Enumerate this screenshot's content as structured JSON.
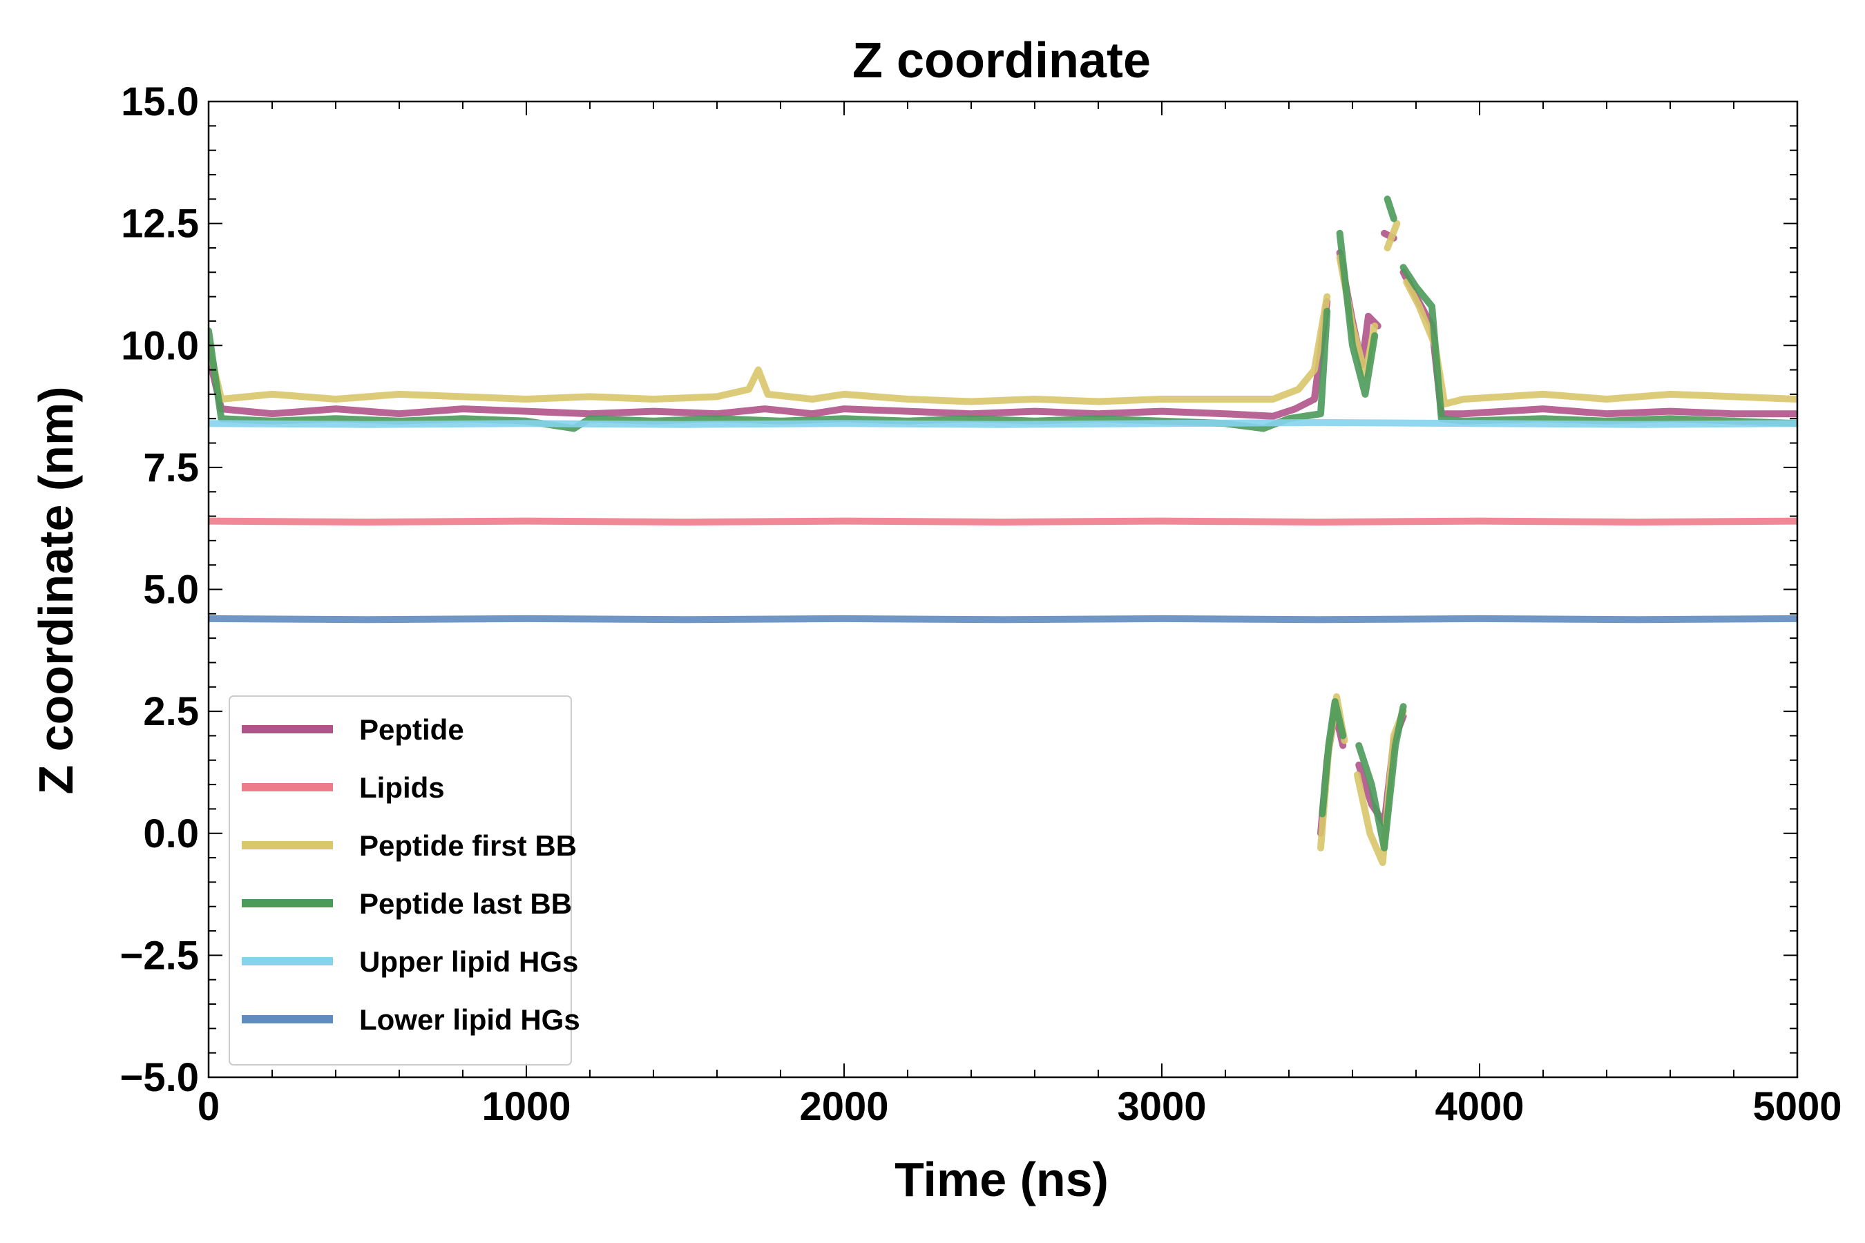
{
  "chart_data": {
    "type": "line",
    "title": "Z coordinate",
    "xlabel": "Time (ns)",
    "ylabel": "Z coordinate (nm)",
    "xlim": [
      0,
      5000
    ],
    "ylim": [
      -5.0,
      15.0
    ],
    "grid": false,
    "legend_position": "lower-left",
    "x_ticks": [
      0,
      1000,
      2000,
      3000,
      4000,
      5000
    ],
    "x_tick_labels": [
      "0",
      "1000",
      "2000",
      "3000",
      "4000",
      "5000"
    ],
    "y_ticks": [
      -5.0,
      -2.5,
      0.0,
      2.5,
      5.0,
      7.5,
      10.0,
      12.5,
      15.0
    ],
    "y_tick_labels": [
      "−5.0",
      "−2.5",
      "0.0",
      "2.5",
      "5.0",
      "7.5",
      "10.0",
      "12.5",
      "15.0"
    ],
    "series": [
      {
        "name": "Peptide",
        "color": "#b0538a",
        "segments": [
          [
            [
              0,
              9.8
            ],
            [
              40,
              8.7
            ],
            [
              200,
              8.6
            ],
            [
              400,
              8.7
            ],
            [
              600,
              8.6
            ],
            [
              800,
              8.7
            ],
            [
              1000,
              8.65
            ],
            [
              1200,
              8.6
            ],
            [
              1400,
              8.65
            ],
            [
              1600,
              8.6
            ],
            [
              1750,
              8.7
            ],
            [
              1900,
              8.6
            ],
            [
              2000,
              8.7
            ],
            [
              2200,
              8.65
            ],
            [
              2400,
              8.6
            ],
            [
              2600,
              8.65
            ],
            [
              2800,
              8.6
            ],
            [
              3000,
              8.65
            ],
            [
              3200,
              8.6
            ],
            [
              3350,
              8.55
            ],
            [
              3420,
              8.7
            ],
            [
              3480,
              8.9
            ],
            [
              3520,
              10.9
            ]
          ],
          [
            [
              3560,
              11.9
            ],
            [
              3600,
              10.5
            ],
            [
              3630,
              9.6
            ],
            [
              3650,
              10.6
            ],
            [
              3680,
              10.4
            ]
          ],
          [
            [
              3700,
              12.3
            ],
            [
              3730,
              12.2
            ]
          ],
          [
            [
              3760,
              11.5
            ],
            [
              3800,
              11.0
            ],
            [
              3850,
              10.4
            ],
            [
              3880,
              8.6
            ],
            [
              3950,
              8.6
            ],
            [
              4200,
              8.7
            ],
            [
              4400,
              8.6
            ],
            [
              4600,
              8.65
            ],
            [
              4800,
              8.6
            ],
            [
              5000,
              8.6
            ]
          ],
          [
            [
              3500,
              0.0
            ],
            [
              3520,
              1.5
            ],
            [
              3545,
              2.5
            ],
            [
              3570,
              1.8
            ]
          ],
          [
            [
              3620,
              1.4
            ],
            [
              3660,
              0.6
            ],
            [
              3700,
              0.2
            ],
            [
              3730,
              1.9
            ],
            [
              3760,
              2.4
            ]
          ]
        ]
      },
      {
        "name": "Lipids",
        "color": "#ee7b8a",
        "segments": [
          [
            [
              0,
              6.4
            ],
            [
              500,
              6.38
            ],
            [
              1000,
              6.4
            ],
            [
              1500,
              6.38
            ],
            [
              2000,
              6.4
            ],
            [
              2500,
              6.38
            ],
            [
              3000,
              6.4
            ],
            [
              3500,
              6.38
            ],
            [
              4000,
              6.4
            ],
            [
              4500,
              6.38
            ],
            [
              5000,
              6.4
            ]
          ]
        ]
      },
      {
        "name": "Peptide first BB",
        "color": "#d8c76b",
        "segments": [
          [
            [
              0,
              10.0
            ],
            [
              40,
              8.9
            ],
            [
              200,
              9.0
            ],
            [
              400,
              8.9
            ],
            [
              600,
              9.0
            ],
            [
              800,
              8.95
            ],
            [
              1000,
              8.9
            ],
            [
              1200,
              8.95
            ],
            [
              1400,
              8.9
            ],
            [
              1600,
              8.95
            ],
            [
              1700,
              9.1
            ],
            [
              1730,
              9.5
            ],
            [
              1760,
              9.0
            ],
            [
              1900,
              8.9
            ],
            [
              2000,
              9.0
            ],
            [
              2200,
              8.9
            ],
            [
              2400,
              8.85
            ],
            [
              2600,
              8.9
            ],
            [
              2800,
              8.85
            ],
            [
              3000,
              8.9
            ],
            [
              3200,
              8.9
            ],
            [
              3350,
              8.9
            ],
            [
              3430,
              9.1
            ],
            [
              3480,
              9.5
            ],
            [
              3520,
              11.0
            ]
          ],
          [
            [
              3560,
              11.8
            ],
            [
              3600,
              10.4
            ],
            [
              3640,
              9.4
            ],
            [
              3670,
              10.4
            ]
          ],
          [
            [
              3710,
              12.0
            ],
            [
              3740,
              12.5
            ]
          ],
          [
            [
              3770,
              11.3
            ],
            [
              3810,
              10.8
            ],
            [
              3860,
              10.0
            ],
            [
              3890,
              8.8
            ],
            [
              3950,
              8.9
            ],
            [
              4200,
              9.0
            ],
            [
              4400,
              8.9
            ],
            [
              4600,
              9.0
            ],
            [
              4800,
              8.95
            ],
            [
              5000,
              8.9
            ]
          ],
          [
            [
              3500,
              -0.3
            ],
            [
              3525,
              1.7
            ],
            [
              3550,
              2.8
            ],
            [
              3575,
              1.9
            ]
          ],
          [
            [
              3615,
              1.2
            ],
            [
              3655,
              0.0
            ],
            [
              3695,
              -0.6
            ],
            [
              3730,
              2.0
            ],
            [
              3760,
              2.5
            ]
          ]
        ]
      },
      {
        "name": "Peptide last BB",
        "color": "#4a9a5a",
        "segments": [
          [
            [
              0,
              10.3
            ],
            [
              40,
              8.5
            ],
            [
              200,
              8.45
            ],
            [
              400,
              8.5
            ],
            [
              600,
              8.45
            ],
            [
              800,
              8.5
            ],
            [
              1000,
              8.45
            ],
            [
              1150,
              8.3
            ],
            [
              1200,
              8.5
            ],
            [
              1400,
              8.45
            ],
            [
              1600,
              8.5
            ],
            [
              1800,
              8.45
            ],
            [
              2000,
              8.5
            ],
            [
              2200,
              8.45
            ],
            [
              2400,
              8.5
            ],
            [
              2600,
              8.45
            ],
            [
              2800,
              8.5
            ],
            [
              3000,
              8.45
            ],
            [
              3200,
              8.4
            ],
            [
              3320,
              8.3
            ],
            [
              3400,
              8.5
            ],
            [
              3500,
              8.6
            ],
            [
              3520,
              10.7
            ]
          ],
          [
            [
              3560,
              12.3
            ],
            [
              3600,
              10.0
            ],
            [
              3640,
              9.0
            ],
            [
              3670,
              10.2
            ]
          ],
          [
            [
              3710,
              13.0
            ],
            [
              3730,
              12.6
            ]
          ],
          [
            [
              3760,
              11.6
            ],
            [
              3800,
              11.2
            ],
            [
              3850,
              10.8
            ],
            [
              3880,
              8.5
            ],
            [
              3950,
              8.45
            ],
            [
              4200,
              8.5
            ],
            [
              4400,
              8.45
            ],
            [
              4600,
              8.5
            ],
            [
              4800,
              8.45
            ],
            [
              5000,
              8.4
            ]
          ],
          [
            [
              3505,
              0.4
            ],
            [
              3525,
              1.8
            ],
            [
              3545,
              2.7
            ],
            [
              3570,
              2.0
            ]
          ],
          [
            [
              3620,
              1.8
            ],
            [
              3660,
              1.0
            ],
            [
              3700,
              -0.3
            ],
            [
              3735,
              1.8
            ],
            [
              3760,
              2.6
            ]
          ]
        ]
      },
      {
        "name": "Upper lipid HGs",
        "color": "#86d3ee",
        "segments": [
          [
            [
              0,
              8.4
            ],
            [
              500,
              8.38
            ],
            [
              1000,
              8.4
            ],
            [
              1500,
              8.38
            ],
            [
              2000,
              8.4
            ],
            [
              2500,
              8.38
            ],
            [
              3000,
              8.4
            ],
            [
              3500,
              8.42
            ],
            [
              4000,
              8.4
            ],
            [
              4500,
              8.38
            ],
            [
              5000,
              8.4
            ]
          ]
        ]
      },
      {
        "name": "Lower lipid HGs",
        "color": "#5f8bbe",
        "segments": [
          [
            [
              0,
              4.4
            ],
            [
              500,
              4.38
            ],
            [
              1000,
              4.4
            ],
            [
              1500,
              4.38
            ],
            [
              2000,
              4.4
            ],
            [
              2500,
              4.38
            ],
            [
              3000,
              4.4
            ],
            [
              3500,
              4.38
            ],
            [
              4000,
              4.4
            ],
            [
              4500,
              4.38
            ],
            [
              5000,
              4.4
            ]
          ]
        ]
      }
    ]
  }
}
